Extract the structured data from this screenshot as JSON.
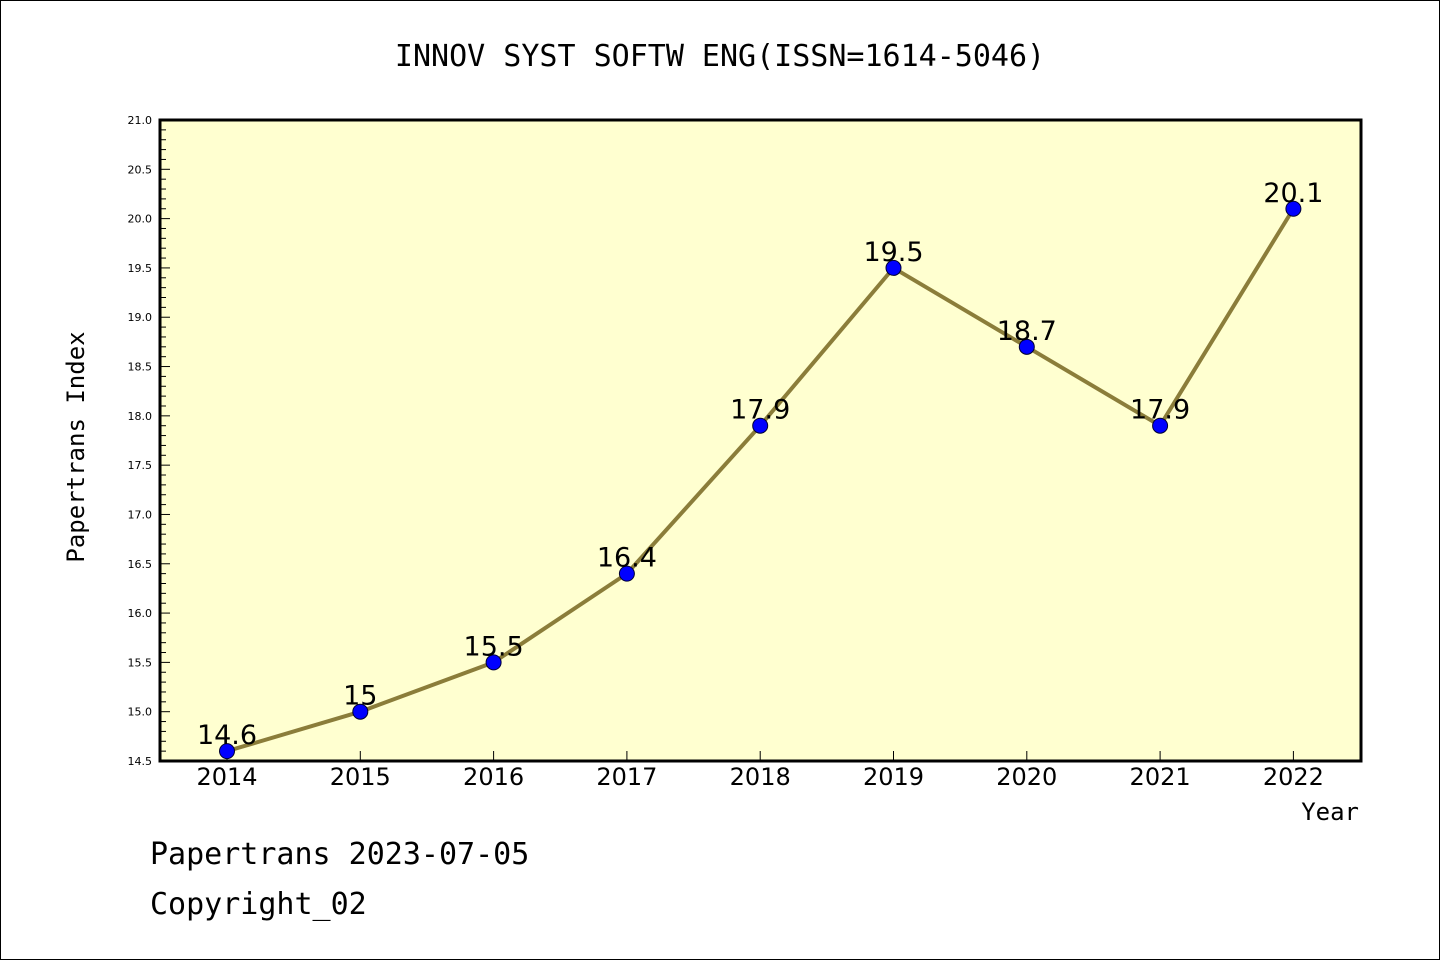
{
  "chart_data": {
    "type": "line",
    "title": "INNOV SYST SOFTW ENG(ISSN=1614-5046)",
    "xlabel": "Year",
    "ylabel": "Papertrans Index",
    "categories": [
      "2014",
      "2015",
      "2016",
      "2017",
      "2018",
      "2019",
      "2020",
      "2021",
      "2022"
    ],
    "series": [
      {
        "values": [
          14.6,
          15.0,
          15.5,
          16.4,
          17.9,
          19.5,
          18.7,
          17.9,
          20.1
        ]
      }
    ],
    "data_labels": [
      "14.6",
      "15",
      "15.5",
      "16.4",
      "17.9",
      "19.5",
      "18.7",
      "17.9",
      "20.1"
    ],
    "ylim": [
      14.5,
      21.0
    ],
    "yticks": [
      "14.5",
      "15.0",
      "15.5",
      "16.0",
      "16.5",
      "17.0",
      "17.5",
      "18.0",
      "18.5",
      "19.0",
      "19.5",
      "20.0",
      "20.5",
      "21.0"
    ],
    "grid": false,
    "colors": {
      "plot_background": "#ffffd0",
      "line": "#8b7d3a",
      "marker": "#0000ff"
    }
  },
  "footer": {
    "line1": "Papertrans 2023-07-05",
    "line2": "Copyright_02"
  }
}
